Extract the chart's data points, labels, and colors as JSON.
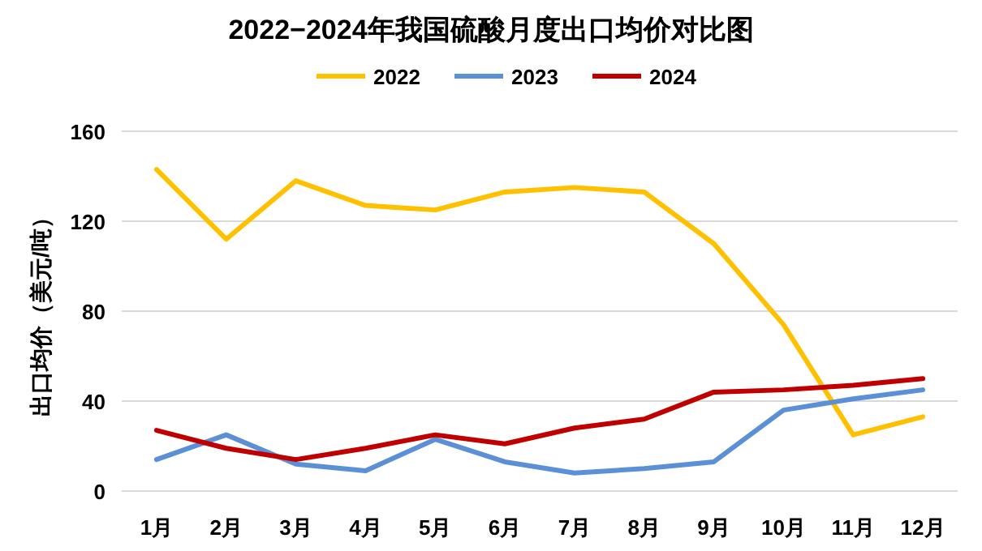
{
  "chart_data": {
    "type": "line",
    "title": "2022−2024年我国硫酸月度出口均价对比图",
    "ylabel": "出口均价（美元/吨）",
    "categories": [
      "1月",
      "2月",
      "3月",
      "4月",
      "5月",
      "6月",
      "7月",
      "8月",
      "9月",
      "10月",
      "11月",
      "12月"
    ],
    "series": [
      {
        "name": "2022",
        "color": "#ffc000",
        "values": [
          143,
          112,
          138,
          127,
          125,
          133,
          135,
          133,
          110,
          74,
          25,
          33
        ]
      },
      {
        "name": "2023",
        "color": "#5b8fd6",
        "values": [
          14,
          25,
          12,
          9,
          23,
          13,
          8,
          10,
          13,
          36,
          41,
          45
        ]
      },
      {
        "name": "2024",
        "color": "#c00000",
        "values": [
          27,
          19,
          14,
          19,
          25,
          21,
          28,
          32,
          44,
          45,
          47,
          50
        ]
      }
    ],
    "ylim": [
      0,
      160
    ],
    "yticks": [
      0,
      40,
      80,
      120,
      160
    ],
    "grid": "y",
    "legend": "top",
    "marker": "none",
    "line_style": "solid"
  }
}
